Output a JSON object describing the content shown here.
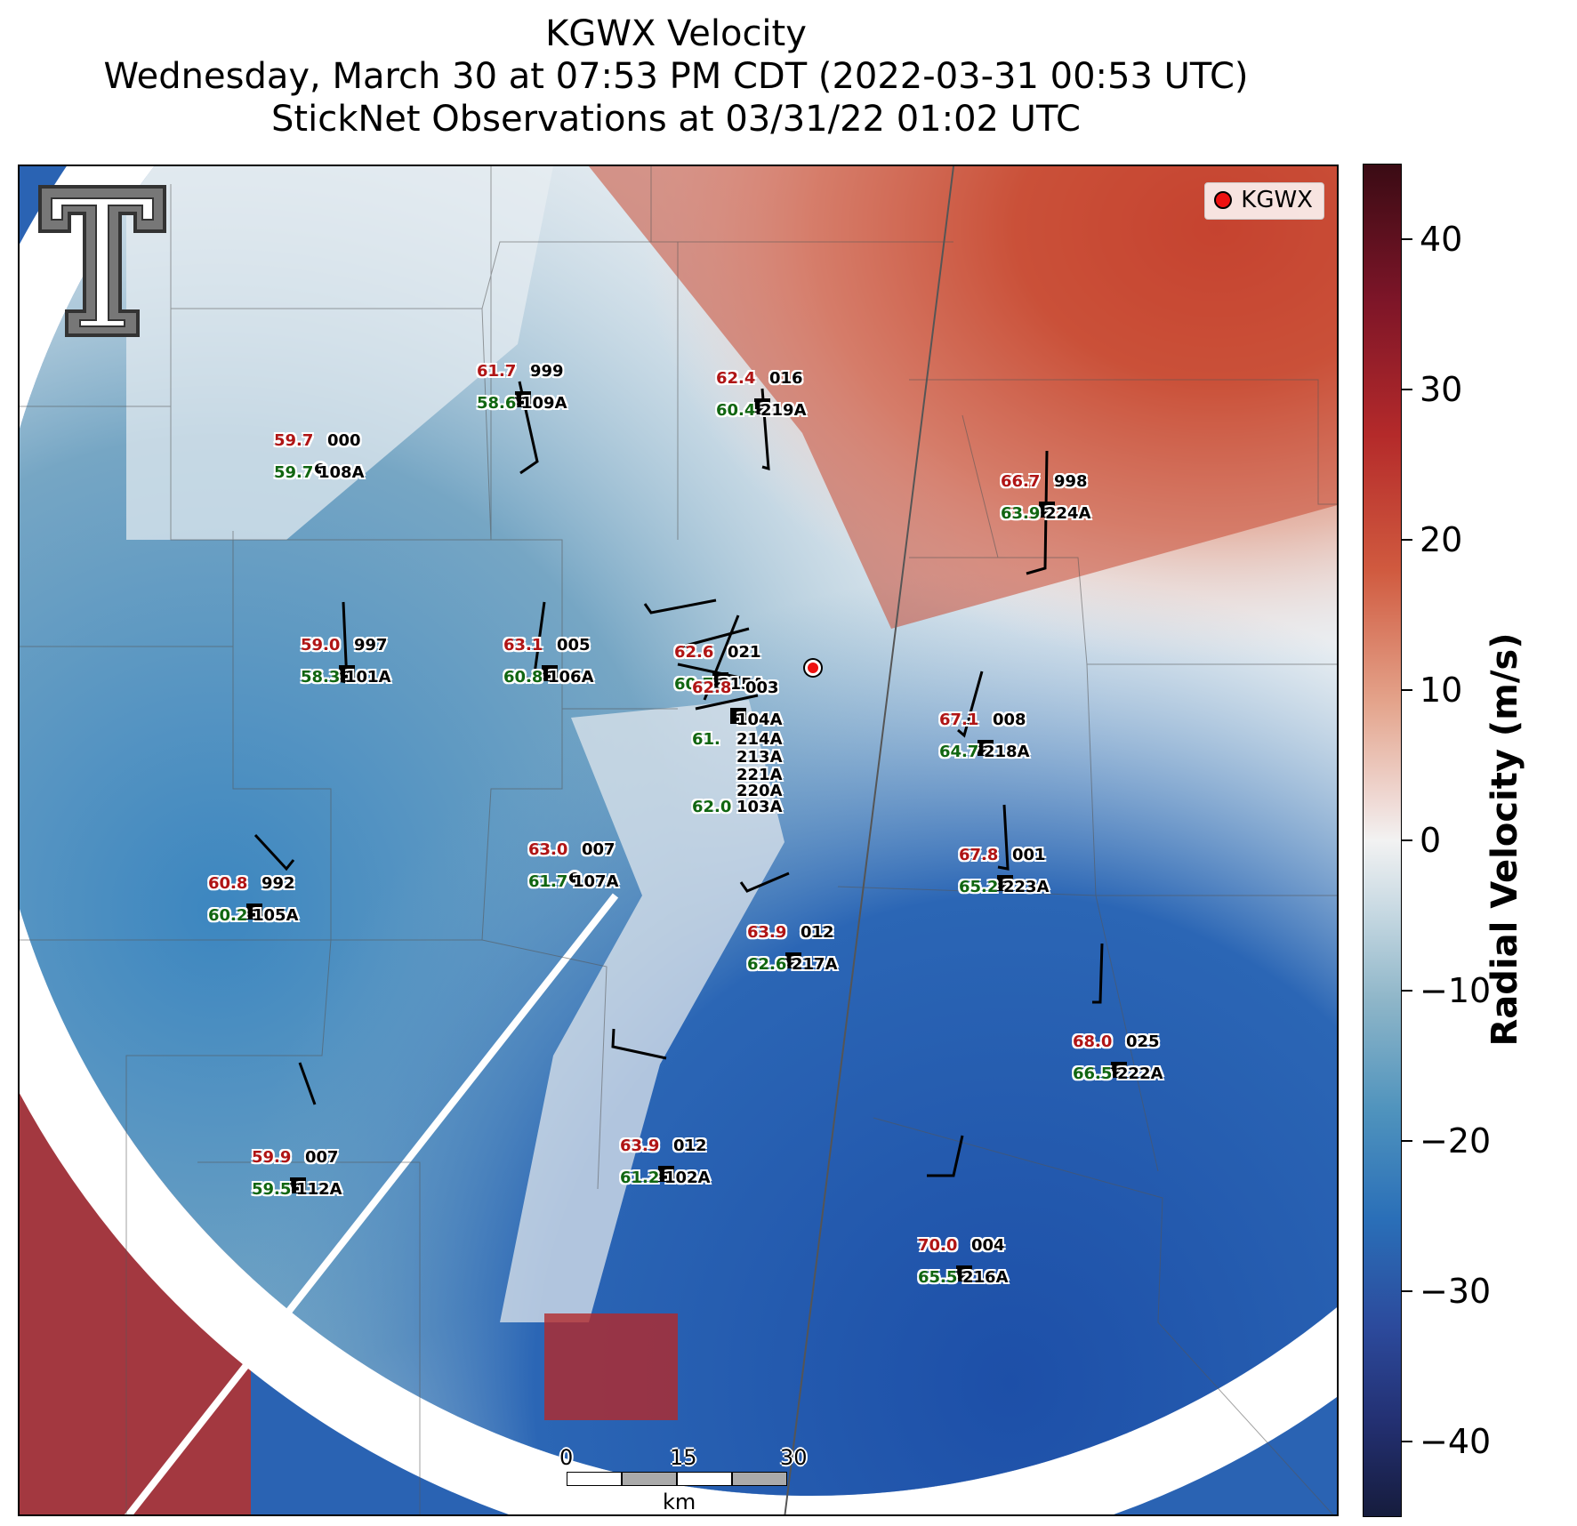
{
  "title_lines": [
    "KGWX Velocity",
    "Wednesday, March 30 at 07:53 PM CDT (2022-03-31 00:53 UTC)",
    "StickNet Observations at 03/31/22 01:02 UTC"
  ],
  "legend": {
    "label": "KGWX",
    "marker_color": "#ee1111"
  },
  "colorbar": {
    "title": "Radial Velocity (m/s)",
    "range": [
      -45,
      45
    ],
    "ticks": [
      "40",
      "30",
      "20",
      "10",
      "0",
      "−10",
      "−20",
      "−30",
      "−40"
    ]
  },
  "scale_bar": {
    "labels": [
      "0",
      "15",
      "30"
    ],
    "unit": "km"
  },
  "logo": "texas-tech-double-t-logo",
  "stations": [
    {
      "temp": "59.7",
      "id_top": "000",
      "dew": "59.7",
      "id_bottom": "108A"
    },
    {
      "temp": "61.7",
      "id_top": "999",
      "dew": "58.6",
      "id_bottom": "109A"
    },
    {
      "temp": "62.4",
      "id_top": "016",
      "dew": "60.4",
      "id_bottom": "219A"
    },
    {
      "temp": "66.7",
      "id_top": "998",
      "dew": "63.9",
      "id_bottom": "224A"
    },
    {
      "temp": "59.0",
      "id_top": "997",
      "dew": "58.3",
      "id_bottom": "101A"
    },
    {
      "temp": "63.1",
      "id_top": "005",
      "dew": "60.8",
      "id_bottom": "106A"
    },
    {
      "temp": "62.6",
      "id_top": "021",
      "dew": "60.7",
      "id_bottom": "215A"
    },
    {
      "temp": "62.8",
      "id_top": "003",
      "dew": "",
      "id_bottom": "104A"
    },
    {
      "temp": "",
      "id_top": "",
      "dew": "61.",
      "id_bottom": "214A"
    },
    {
      "temp": "",
      "id_top": "",
      "dew": "",
      "id_bottom": "213A"
    },
    {
      "temp": "",
      "id_top": "",
      "dew": "",
      "id_bottom": "221A"
    },
    {
      "temp": "",
      "id_top": "",
      "dew": "",
      "id_bottom": "220A"
    },
    {
      "temp": "",
      "id_top": "",
      "dew": "62.0",
      "id_bottom": "103A"
    },
    {
      "temp": "67.1",
      "id_top": "008",
      "dew": "64.7",
      "id_bottom": "218A"
    },
    {
      "temp": "63.0",
      "id_top": "007",
      "dew": "61.7",
      "id_bottom": "107A"
    },
    {
      "temp": "60.8",
      "id_top": "992",
      "dew": "60.2",
      "id_bottom": "105A"
    },
    {
      "temp": "67.8",
      "id_top": "001",
      "dew": "65.2",
      "id_bottom": "223A"
    },
    {
      "temp": "63.9",
      "id_top": "012",
      "dew": "62.6",
      "id_bottom": "217A"
    },
    {
      "temp": "68.0",
      "id_top": "025",
      "dew": "66.5",
      "id_bottom": "222A"
    },
    {
      "temp": "59.9",
      "id_top": "007",
      "dew": "59.5",
      "id_bottom": "112A"
    },
    {
      "temp": "63.9",
      "id_top": "012",
      "dew": "61.2",
      "id_bottom": "102A"
    },
    {
      "temp": "70.0",
      "id_top": "004",
      "dew": "65.5",
      "id_bottom": "216A"
    }
  ]
}
